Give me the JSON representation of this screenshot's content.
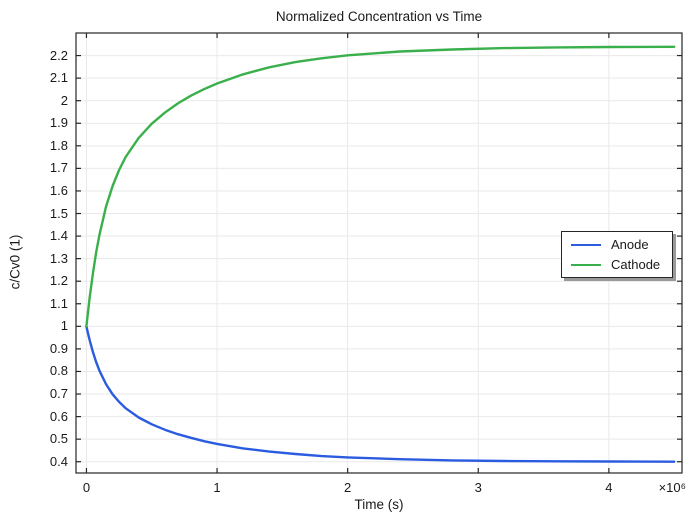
{
  "chart_data": {
    "type": "line",
    "title": "Normalized Concentration vs Time",
    "xlabel": "Time (s)",
    "ylabel": "c/Cv0 (1)",
    "x_axis_multiplier": "×10⁶",
    "x_unit_note": "x values are in units of 10^6 seconds",
    "xlim": [
      -0.08,
      4.56
    ],
    "ylim": [
      0.35,
      2.3
    ],
    "grid": true,
    "xticks": {
      "values": [
        0,
        1,
        2,
        3,
        4
      ],
      "labels": [
        "0",
        "1",
        "2",
        "3",
        "4"
      ]
    },
    "yticks": {
      "values": [
        0.4,
        0.5,
        0.6,
        0.7,
        0.8,
        0.9,
        1.0,
        1.1,
        1.2,
        1.3,
        1.4,
        1.5,
        1.6,
        1.7,
        1.8,
        1.9,
        2.0,
        2.1,
        2.2
      ],
      "labels": [
        "0.4",
        "0.5",
        "0.6",
        "0.7",
        "0.8",
        "0.9",
        "1",
        "1.1",
        "1.2",
        "1.3",
        "1.4",
        "1.5",
        "1.6",
        "1.7",
        "1.8",
        "1.9",
        "2",
        "2.1",
        "2.2"
      ]
    },
    "legend": {
      "position": "inside-right",
      "entries": [
        "Anode",
        "Cathode"
      ]
    },
    "colors": {
      "axis": "#262626",
      "grid": "#e9e9e9",
      "text": "#1a1a1a",
      "background": "#ffffff",
      "anode": "#2b5ce0",
      "cathode": "#3ab04c",
      "legend_shadow": "#9a9a9a"
    },
    "series": [
      {
        "name": "Anode",
        "color": "#2b5ce0",
        "x": [
          0,
          0.0125,
          0.025,
          0.05,
          0.075,
          0.1,
          0.15,
          0.2,
          0.25,
          0.3,
          0.4,
          0.5,
          0.6,
          0.7,
          0.8,
          0.9,
          1.0,
          1.2,
          1.4,
          1.6,
          1.8,
          2.0,
          2.4,
          2.8,
          3.2,
          3.6,
          4.0,
          4.5
        ],
        "y": [
          1.0,
          0.967,
          0.938,
          0.885,
          0.841,
          0.803,
          0.744,
          0.699,
          0.665,
          0.637,
          0.596,
          0.566,
          0.542,
          0.522,
          0.506,
          0.491,
          0.479,
          0.459,
          0.445,
          0.434,
          0.425,
          0.419,
          0.411,
          0.406,
          0.403,
          0.402,
          0.401,
          0.4
        ]
      },
      {
        "name": "Cathode",
        "color": "#3ab04c",
        "x": [
          0,
          0.0125,
          0.025,
          0.05,
          0.075,
          0.1,
          0.15,
          0.2,
          0.25,
          0.3,
          0.4,
          0.5,
          0.6,
          0.7,
          0.8,
          0.9,
          1.0,
          1.2,
          1.4,
          1.6,
          1.8,
          2.0,
          2.4,
          2.8,
          3.2,
          3.6,
          4.0,
          4.5
        ],
        "y": [
          1.0,
          1.067,
          1.129,
          1.237,
          1.329,
          1.406,
          1.53,
          1.622,
          1.693,
          1.75,
          1.835,
          1.898,
          1.947,
          1.988,
          2.022,
          2.051,
          2.076,
          2.117,
          2.148,
          2.171,
          2.188,
          2.201,
          2.218,
          2.227,
          2.233,
          2.236,
          2.238,
          2.239
        ]
      }
    ]
  }
}
